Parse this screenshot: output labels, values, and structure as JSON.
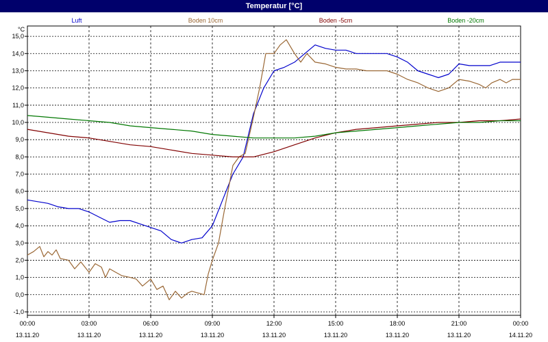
{
  "window": {
    "title": "Temperatur [°C]"
  },
  "chart_data": {
    "type": "line",
    "title": "Temperatur [°C]",
    "ylabel": "°C",
    "xlabel": "",
    "ylim": [
      -1.2,
      15.6
    ],
    "grid": true,
    "legend_position": "top",
    "y_ticks": [
      -1.0,
      0.0,
      1.0,
      2.0,
      3.0,
      4.0,
      5.0,
      6.0,
      7.0,
      8.0,
      9.0,
      10.0,
      11.0,
      12.0,
      13.0,
      14.0,
      15.0
    ],
    "y_tick_labels": [
      "-1,0",
      "0,0",
      "1,0",
      "2,0",
      "3,0",
      "4,0",
      "5,0",
      "6,0",
      "7,0",
      "8,0",
      "9,0",
      "10,0",
      "11,0",
      "12,0",
      "13,0",
      "14,0",
      "15,0"
    ],
    "x_ticks": [
      {
        "time": "00:00",
        "date": "13.11.20"
      },
      {
        "time": "03:00",
        "date": "13.11.20"
      },
      {
        "time": "06:00",
        "date": "13.11.20"
      },
      {
        "time": "09:00",
        "date": "13.11.20"
      },
      {
        "time": "12:00",
        "date": "13.11.20"
      },
      {
        "time": "15:00",
        "date": "13.11.20"
      },
      {
        "time": "18:00",
        "date": "13.11.20"
      },
      {
        "time": "21:00",
        "date": "13.11.20"
      },
      {
        "time": "00:00",
        "date": "14.11.20"
      }
    ],
    "series": [
      {
        "name": "Luft",
        "color": "#0000cc",
        "points": [
          [
            0,
            5.5
          ],
          [
            0.5,
            5.4
          ],
          [
            1,
            5.3
          ],
          [
            1.5,
            5.1
          ],
          [
            2,
            5.0
          ],
          [
            2.5,
            5.0
          ],
          [
            3,
            4.8
          ],
          [
            3.5,
            4.5
          ],
          [
            4,
            4.2
          ],
          [
            4.5,
            4.3
          ],
          [
            5,
            4.3
          ],
          [
            5.5,
            4.1
          ],
          [
            6,
            3.9
          ],
          [
            6.5,
            3.7
          ],
          [
            7,
            3.2
          ],
          [
            7.5,
            3.0
          ],
          [
            8,
            3.2
          ],
          [
            8.5,
            3.3
          ],
          [
            9,
            4.0
          ],
          [
            9.5,
            5.5
          ],
          [
            10,
            7.0
          ],
          [
            10.5,
            8.0
          ],
          [
            11,
            10.5
          ],
          [
            11.5,
            12.0
          ],
          [
            12,
            13.0
          ],
          [
            12.5,
            13.2
          ],
          [
            13,
            13.5
          ],
          [
            13.5,
            14.0
          ],
          [
            14,
            14.5
          ],
          [
            14.5,
            14.3
          ],
          [
            15,
            14.2
          ],
          [
            15.5,
            14.2
          ],
          [
            16,
            14.0
          ],
          [
            16.5,
            14.0
          ],
          [
            17,
            14.0
          ],
          [
            17.5,
            14.0
          ],
          [
            18,
            13.8
          ],
          [
            18.5,
            13.5
          ],
          [
            19,
            13.0
          ],
          [
            19.5,
            12.8
          ],
          [
            20,
            12.6
          ],
          [
            20.5,
            12.8
          ],
          [
            21,
            13.4
          ],
          [
            21.5,
            13.3
          ],
          [
            22,
            13.3
          ],
          [
            22.5,
            13.3
          ],
          [
            23,
            13.5
          ],
          [
            23.5,
            13.5
          ],
          [
            24,
            13.5
          ]
        ]
      },
      {
        "name": "Boden 10cm",
        "color": "#996633",
        "points": [
          [
            0,
            2.3
          ],
          [
            0.3,
            2.5
          ],
          [
            0.6,
            2.8
          ],
          [
            0.8,
            2.2
          ],
          [
            1,
            2.5
          ],
          [
            1.2,
            2.3
          ],
          [
            1.4,
            2.6
          ],
          [
            1.6,
            2.1
          ],
          [
            2,
            2.0
          ],
          [
            2.3,
            1.5
          ],
          [
            2.6,
            1.9
          ],
          [
            2.8,
            1.6
          ],
          [
            3,
            1.3
          ],
          [
            3.3,
            1.8
          ],
          [
            3.6,
            1.6
          ],
          [
            3.8,
            1.0
          ],
          [
            4,
            1.5
          ],
          [
            4.3,
            1.3
          ],
          [
            4.6,
            1.1
          ],
          [
            5,
            1.0
          ],
          [
            5.3,
            0.9
          ],
          [
            5.6,
            0.5
          ],
          [
            6,
            0.9
          ],
          [
            6.3,
            0.3
          ],
          [
            6.6,
            0.5
          ],
          [
            6.9,
            -0.3
          ],
          [
            7.2,
            0.2
          ],
          [
            7.5,
            -0.2
          ],
          [
            7.8,
            0.1
          ],
          [
            8,
            0.2
          ],
          [
            8.3,
            0.1
          ],
          [
            8.6,
            0.0
          ],
          [
            8.8,
            1.2
          ],
          [
            9,
            2.0
          ],
          [
            9.3,
            3.0
          ],
          [
            9.6,
            5.0
          ],
          [
            10,
            7.5
          ],
          [
            10.3,
            8.0
          ],
          [
            10.6,
            8.2
          ],
          [
            11,
            10.3
          ],
          [
            11.3,
            12.0
          ],
          [
            11.6,
            14.0
          ],
          [
            12,
            14.0
          ],
          [
            12.3,
            14.5
          ],
          [
            12.6,
            14.8
          ],
          [
            13,
            14.0
          ],
          [
            13.3,
            13.5
          ],
          [
            13.6,
            14.0
          ],
          [
            14,
            13.5
          ],
          [
            14.5,
            13.4
          ],
          [
            15,
            13.2
          ],
          [
            15.5,
            13.1
          ],
          [
            16,
            13.1
          ],
          [
            16.5,
            13.0
          ],
          [
            17,
            13.0
          ],
          [
            17.5,
            13.0
          ],
          [
            18,
            12.8
          ],
          [
            18.5,
            12.5
          ],
          [
            19,
            12.3
          ],
          [
            19.5,
            12.0
          ],
          [
            20,
            11.8
          ],
          [
            20.5,
            12.0
          ],
          [
            21,
            12.5
          ],
          [
            21.5,
            12.4
          ],
          [
            22,
            12.2
          ],
          [
            22.3,
            12.0
          ],
          [
            22.6,
            12.3
          ],
          [
            23,
            12.5
          ],
          [
            23.3,
            12.3
          ],
          [
            23.6,
            12.5
          ],
          [
            24,
            12.5
          ]
        ]
      },
      {
        "name": "Boden -5cm",
        "color": "#800000",
        "points": [
          [
            0,
            9.6
          ],
          [
            1,
            9.4
          ],
          [
            2,
            9.2
          ],
          [
            3,
            9.1
          ],
          [
            4,
            8.9
          ],
          [
            5,
            8.7
          ],
          [
            6,
            8.6
          ],
          [
            7,
            8.4
          ],
          [
            8,
            8.2
          ],
          [
            9,
            8.1
          ],
          [
            10,
            8.0
          ],
          [
            11,
            8.0
          ],
          [
            12,
            8.3
          ],
          [
            13,
            8.7
          ],
          [
            14,
            9.1
          ],
          [
            15,
            9.4
          ],
          [
            16,
            9.6
          ],
          [
            17,
            9.7
          ],
          [
            18,
            9.8
          ],
          [
            19,
            9.9
          ],
          [
            20,
            10.0
          ],
          [
            21,
            10.0
          ],
          [
            22,
            10.1
          ],
          [
            23,
            10.1
          ],
          [
            24,
            10.2
          ]
        ]
      },
      {
        "name": "Boden -20cm",
        "color": "#007700",
        "points": [
          [
            0,
            10.4
          ],
          [
            1,
            10.3
          ],
          [
            2,
            10.2
          ],
          [
            3,
            10.1
          ],
          [
            4,
            10.0
          ],
          [
            5,
            9.8
          ],
          [
            6,
            9.7
          ],
          [
            7,
            9.6
          ],
          [
            8,
            9.5
          ],
          [
            9,
            9.3
          ],
          [
            10,
            9.2
          ],
          [
            11,
            9.1
          ],
          [
            12,
            9.1
          ],
          [
            13,
            9.1
          ],
          [
            14,
            9.2
          ],
          [
            15,
            9.4
          ],
          [
            16,
            9.5
          ],
          [
            17,
            9.6
          ],
          [
            18,
            9.7
          ],
          [
            19,
            9.8
          ],
          [
            20,
            9.9
          ],
          [
            21,
            10.0
          ],
          [
            22,
            10.0
          ],
          [
            23,
            10.1
          ],
          [
            24,
            10.1
          ]
        ]
      }
    ]
  }
}
